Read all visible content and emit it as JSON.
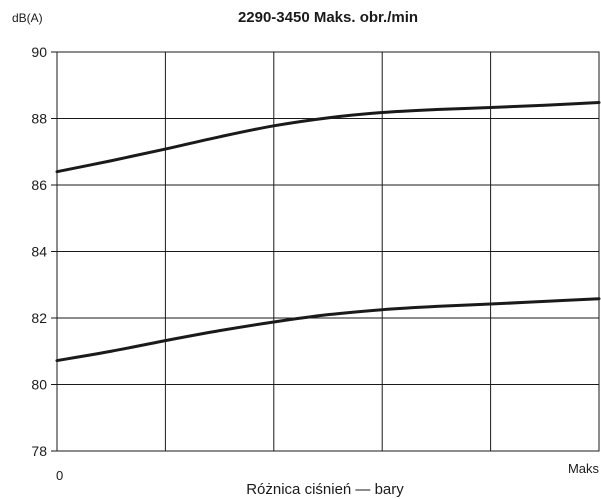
{
  "chart_data": {
    "type": "line",
    "title": "2290-3450 Maks. obr./min",
    "ylabel": "dB(A)",
    "xlabel": "Różnica ciśnień — bary",
    "x_tick_labels": [
      "0",
      "Maks"
    ],
    "y_ticks": [
      78,
      80,
      82,
      84,
      86,
      88,
      90
    ],
    "ylim": [
      78,
      90
    ],
    "xlim": [
      0,
      1
    ],
    "grid": true,
    "series": [
      {
        "x": [
          0,
          0.1,
          0.2,
          0.3,
          0.4,
          0.5,
          0.6,
          0.7,
          0.8,
          0.9,
          1.0
        ],
        "values": [
          86.4,
          86.73,
          87.08,
          87.45,
          87.78,
          88.02,
          88.18,
          88.27,
          88.33,
          88.4,
          88.48
        ]
      },
      {
        "x": [
          0,
          0.1,
          0.2,
          0.3,
          0.4,
          0.5,
          0.6,
          0.7,
          0.8,
          0.9,
          1.0
        ],
        "values": [
          80.72,
          81.0,
          81.32,
          81.62,
          81.88,
          82.1,
          82.25,
          82.35,
          82.42,
          82.5,
          82.58
        ]
      }
    ]
  }
}
